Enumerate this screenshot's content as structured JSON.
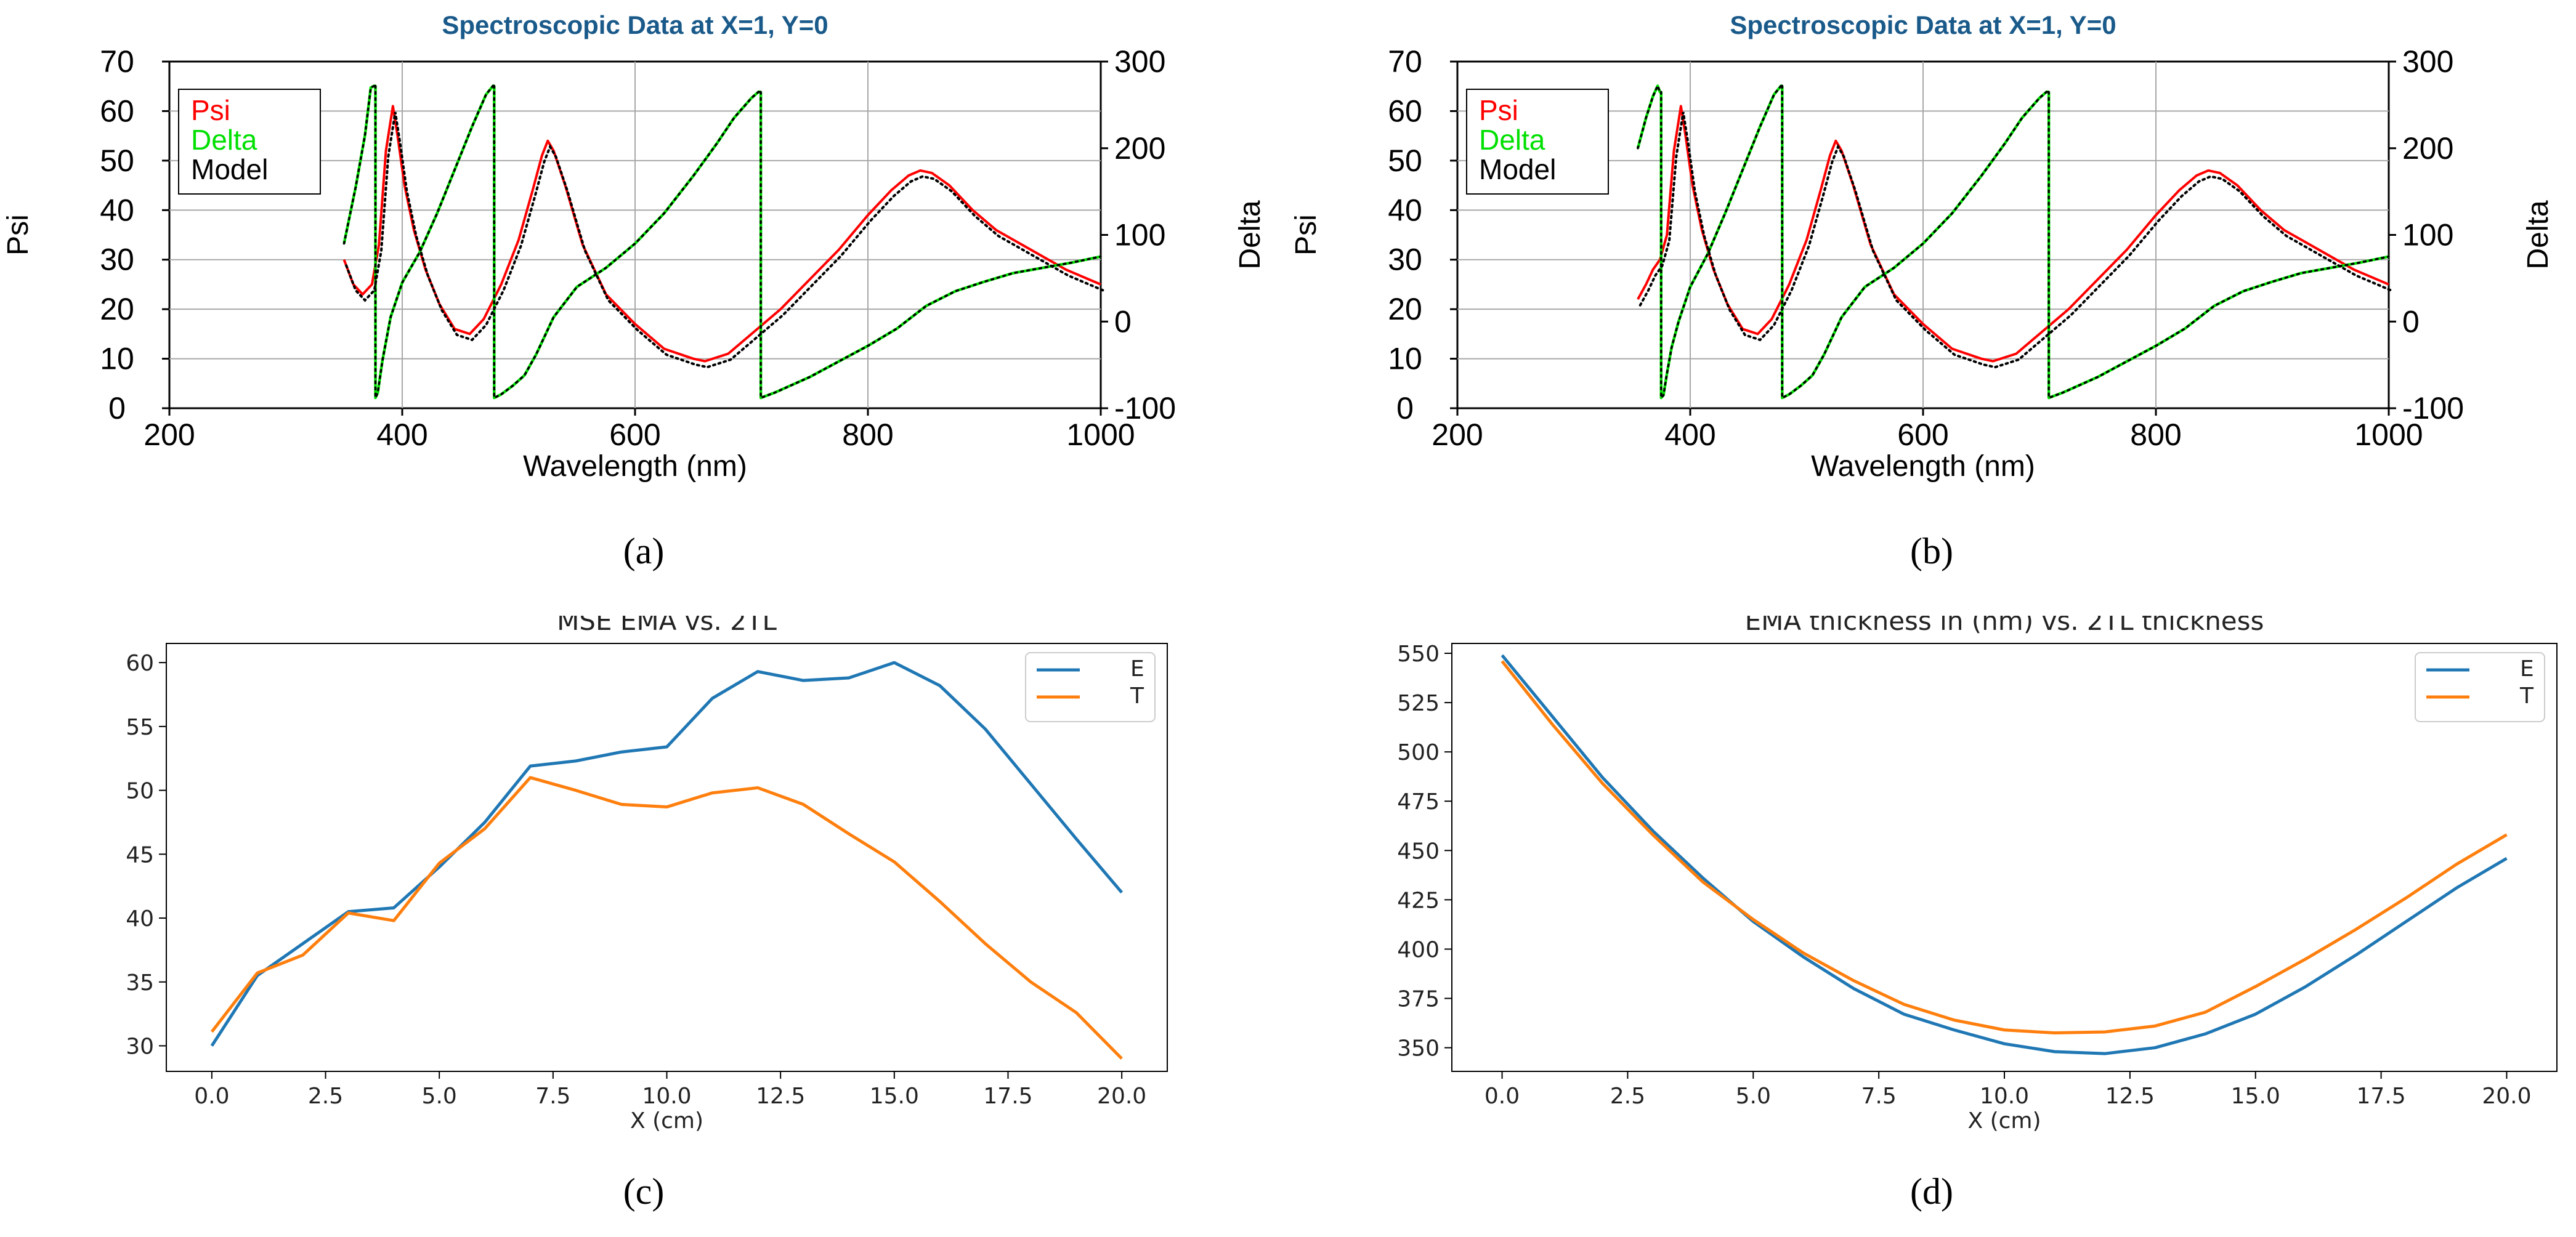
{
  "chart_data": [
    {
      "type": "line",
      "panel_label": "(a)",
      "title": "Spectroscopic Data at X=1, Y=0",
      "title_color": "#1a5a8a",
      "xlabel": "Wavelength (nm)",
      "ylabel": "Psi",
      "y2label": "Delta",
      "xlim": [
        200,
        1000
      ],
      "ylim": [
        0,
        70
      ],
      "y2lim": [
        -100,
        300
      ],
      "xticks": [
        "200",
        "400",
        "600",
        "800",
        "1000"
      ],
      "yticks": [
        "0",
        "10",
        "20",
        "30",
        "40",
        "50",
        "60",
        "70"
      ],
      "y2ticks": [
        "-100",
        "0",
        "100",
        "200",
        "300"
      ],
      "grid": true,
      "legend": {
        "position": "top-left",
        "entries": [
          {
            "label": "Psi",
            "color": "#ff0000"
          },
          {
            "label": "Delta",
            "color": "#00e000"
          },
          {
            "label": "Model",
            "color": "#000000"
          }
        ]
      },
      "series": [
        {
          "name": "Psi",
          "axis": "left",
          "color": "#ff0000",
          "x": [
            350,
            358,
            366,
            374,
            380,
            386,
            392,
            396,
            402,
            410,
            420,
            432,
            445,
            458,
            470,
            485,
            500,
            512,
            520,
            525,
            530,
            540,
            555,
            575,
            600,
            625,
            650,
            660,
            680,
            700,
            725,
            750,
            775,
            800,
            820,
            835,
            845,
            855,
            870,
            890,
            910,
            940,
            970,
            1000
          ],
          "y": [
            30,
            25,
            23,
            25,
            33,
            52,
            61,
            55,
            45,
            36,
            28,
            21,
            16,
            15,
            18,
            25,
            34,
            44,
            51,
            54,
            52,
            45,
            33,
            23,
            17,
            12,
            10,
            9.5,
            11,
            15,
            20,
            26,
            32,
            39,
            44,
            47,
            48,
            47.5,
            45,
            40,
            36,
            32,
            28,
            25
          ]
        },
        {
          "name": "Delta",
          "axis": "right",
          "color": "#00e000",
          "x": [
            350,
            360,
            368,
            373,
            376,
            377,
            379,
            383,
            390,
            400,
            415,
            430,
            445,
            460,
            472,
            478,
            479,
            485,
            495,
            505,
            515,
            530,
            550,
            575,
            600,
            625,
            650,
            670,
            685,
            700,
            706,
            708,
            720,
            750,
            775,
            800,
            825,
            850,
            875,
            900,
            925,
            950,
            975,
            1000
          ],
          "y": [
            90,
            155,
            215,
            270,
            272,
            -88,
            -82,
            -45,
            5,
            45,
            80,
            125,
            175,
            225,
            262,
            272,
            -88,
            -84,
            -74,
            -62,
            -38,
            5,
            40,
            62,
            90,
            125,
            168,
            205,
            235,
            258,
            265,
            -88,
            -82,
            -64,
            -46,
            -28,
            -8,
            18,
            35,
            46,
            56,
            62,
            68,
            75
          ]
        },
        {
          "name": "Model",
          "axis": "mixed",
          "color": "#000000",
          "style": "dotted"
        }
      ]
    },
    {
      "type": "line",
      "panel_label": "(b)",
      "title": "Spectroscopic Data at X=1, Y=0",
      "title_color": "#1a5a8a",
      "xlabel": "Wavelength (nm)",
      "ylabel": "Psi",
      "y2label": "Delta",
      "xlim": [
        200,
        1000
      ],
      "ylim": [
        0,
        70
      ],
      "y2lim": [
        -100,
        300
      ],
      "xticks": [
        "200",
        "400",
        "600",
        "800",
        "1000"
      ],
      "yticks": [
        "0",
        "10",
        "20",
        "30",
        "40",
        "50",
        "60",
        "70"
      ],
      "y2ticks": [
        "-100",
        "0",
        "100",
        "200",
        "300"
      ],
      "grid": true,
      "legend": {
        "position": "top-left",
        "entries": [
          {
            "label": "Psi",
            "color": "#ff0000"
          },
          {
            "label": "Delta",
            "color": "#00e000"
          },
          {
            "label": "Model",
            "color": "#000000"
          }
        ]
      },
      "series": [
        {
          "name": "Psi",
          "axis": "left",
          "color": "#ff0000",
          "x": [
            355,
            362,
            368,
            374,
            380,
            386,
            392,
            396,
            402,
            410,
            420,
            432,
            445,
            458,
            470,
            485,
            500,
            512,
            520,
            525,
            530,
            540,
            555,
            575,
            600,
            625,
            650,
            660,
            680,
            700,
            725,
            750,
            775,
            800,
            820,
            835,
            845,
            855,
            870,
            890,
            910,
            940,
            970,
            1000
          ],
          "y": [
            22,
            25,
            28,
            30,
            35,
            52,
            61,
            55,
            45,
            36,
            28,
            21,
            16,
            15,
            18,
            25,
            34,
            44,
            51,
            54,
            52,
            45,
            33,
            23,
            17,
            12,
            10,
            9.5,
            11,
            15,
            20,
            26,
            32,
            39,
            44,
            47,
            48,
            47.5,
            45,
            40,
            36,
            32,
            28,
            25
          ]
        },
        {
          "name": "Delta",
          "axis": "right",
          "color": "#00e000",
          "x": [
            355,
            362,
            368,
            372,
            374,
            375,
            377,
            380,
            384,
            390,
            400,
            415,
            430,
            445,
            460,
            472,
            478,
            479,
            485,
            495,
            505,
            515,
            530,
            550,
            575,
            600,
            625,
            650,
            670,
            685,
            700,
            706,
            708,
            720,
            750,
            775,
            800,
            825,
            850,
            875,
            900,
            925,
            950,
            975,
            1000
          ],
          "y": [
            200,
            235,
            260,
            272,
            265,
            -88,
            -85,
            -60,
            -30,
            0,
            40,
            78,
            125,
            175,
            225,
            262,
            272,
            -88,
            -84,
            -74,
            -62,
            -38,
            5,
            40,
            62,
            90,
            125,
            168,
            205,
            235,
            258,
            265,
            -88,
            -82,
            -64,
            -46,
            -28,
            -8,
            18,
            35,
            46,
            56,
            62,
            68,
            75
          ]
        },
        {
          "name": "Model",
          "axis": "mixed",
          "color": "#000000",
          "style": "dotted"
        }
      ]
    },
    {
      "type": "line",
      "panel_label": "(c)",
      "title": "MSE EMA vs. 2TL",
      "xlabel": "X (cm)",
      "ylabel": "",
      "xlim": [
        -1,
        21
      ],
      "ylim": [
        28,
        61.5
      ],
      "xticks": [
        "0.0",
        "2.5",
        "5.0",
        "7.5",
        "10.0",
        "12.5",
        "15.0",
        "17.5",
        "20.0"
      ],
      "yticks": [
        "30",
        "35",
        "40",
        "45",
        "50",
        "55",
        "60"
      ],
      "grid": false,
      "legend": {
        "position": "top-right"
      },
      "x": [
        0,
        1,
        2,
        3,
        4,
        5,
        6,
        7,
        8,
        9,
        10,
        11,
        12,
        13,
        14,
        15,
        16,
        17,
        18,
        19,
        20
      ],
      "series": [
        {
          "name": "E",
          "color": "#1f77b4",
          "values": [
            30.0,
            35.5,
            38.0,
            40.5,
            40.8,
            44.0,
            47.5,
            51.9,
            52.3,
            53.0,
            53.4,
            57.2,
            59.3,
            58.6,
            58.8,
            60.0,
            58.2,
            54.8,
            50.5,
            46.2,
            42.0
          ]
        },
        {
          "name": "T",
          "color": "#ff7f0e",
          "values": [
            31.1,
            35.7,
            37.1,
            40.4,
            39.8,
            44.3,
            47.0,
            51.0,
            50.0,
            48.9,
            48.7,
            49.8,
            50.2,
            48.9,
            46.6,
            44.4,
            41.3,
            38.0,
            35.0,
            32.6,
            29.0
          ]
        }
      ]
    },
    {
      "type": "line",
      "panel_label": "(d)",
      "title": "EMA thickness in (nm) vs. 2TL thickness",
      "xlabel": "X (cm)",
      "ylabel": "",
      "xlim": [
        -1,
        21
      ],
      "ylim": [
        338,
        555
      ],
      "xticks": [
        "0.0",
        "2.5",
        "5.0",
        "7.5",
        "10.0",
        "12.5",
        "15.0",
        "17.5",
        "20.0"
      ],
      "yticks": [
        "350",
        "375",
        "400",
        "425",
        "450",
        "475",
        "500",
        "525",
        "550"
      ],
      "grid": false,
      "legend": {
        "position": "top-right"
      },
      "x": [
        0,
        1,
        2,
        3,
        4,
        5,
        6,
        7,
        8,
        9,
        10,
        11,
        12,
        13,
        14,
        15,
        16,
        17,
        18,
        19,
        20
      ],
      "series": [
        {
          "name": "E",
          "color": "#1f77b4",
          "values": [
            549,
            518,
            487,
            460,
            436,
            414,
            396,
            380,
            367,
            359,
            352,
            348,
            347,
            350,
            357,
            367,
            381,
            397,
            414,
            431,
            446
          ]
        },
        {
          "name": "T",
          "color": "#ff7f0e",
          "values": [
            546,
            514,
            484,
            458,
            434,
            415,
            398,
            384,
            372,
            364,
            359,
            357.5,
            358,
            361,
            368,
            381,
            395,
            410,
            426,
            443,
            458
          ]
        }
      ]
    }
  ]
}
